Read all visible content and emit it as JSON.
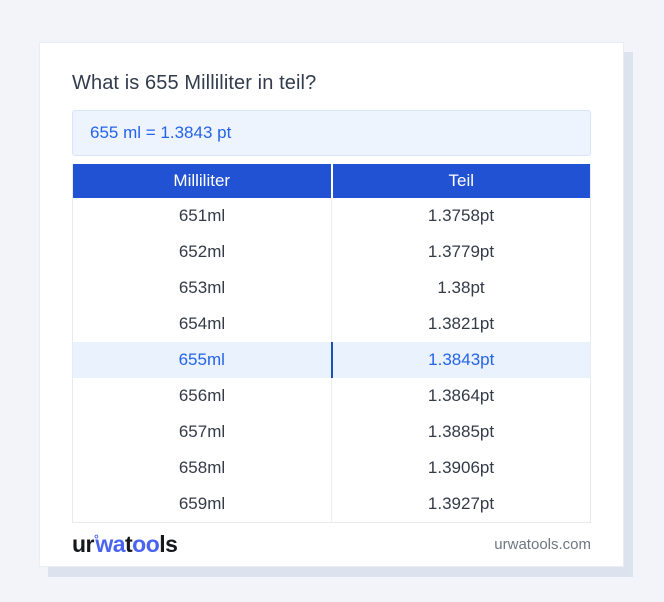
{
  "title": "What is 655 Milliliter in teil?",
  "result": "655 ml = 1.3843 pt",
  "table": {
    "headers": [
      "Milliliter",
      "Teil"
    ],
    "rows": [
      {
        "ml": "651ml",
        "teil": "1.3758pt",
        "highlight": false
      },
      {
        "ml": "652ml",
        "teil": "1.3779pt",
        "highlight": false
      },
      {
        "ml": "653ml",
        "teil": "1.38pt",
        "highlight": false
      },
      {
        "ml": "654ml",
        "teil": "1.3821pt",
        "highlight": false
      },
      {
        "ml": "655ml",
        "teil": "1.3843pt",
        "highlight": true
      },
      {
        "ml": "656ml",
        "teil": "1.3864pt",
        "highlight": false
      },
      {
        "ml": "657ml",
        "teil": "1.3885pt",
        "highlight": false
      },
      {
        "ml": "658ml",
        "teil": "1.3906pt",
        "highlight": false
      },
      {
        "ml": "659ml",
        "teil": "1.3927pt",
        "highlight": false
      }
    ]
  },
  "footer": {
    "logo": {
      "p1": "ur",
      "degree": "°",
      "p2": "wa",
      "p3": "t",
      "p4": "oo",
      "p5": "ls"
    },
    "domain": "urwatools.com"
  },
  "colors": {
    "page_background": "#f2f4f9",
    "header_blue": "#2152d3",
    "accent_blue": "#2563eb",
    "highlight_row_bg": "#e9f2fd",
    "highlight_divider": "#1d52b5",
    "result_box_bg": "#edf4fe",
    "result_box_border": "#d7e4f9",
    "logo_blue": "#4a63f1",
    "card_shadow": "#dce3ef"
  }
}
